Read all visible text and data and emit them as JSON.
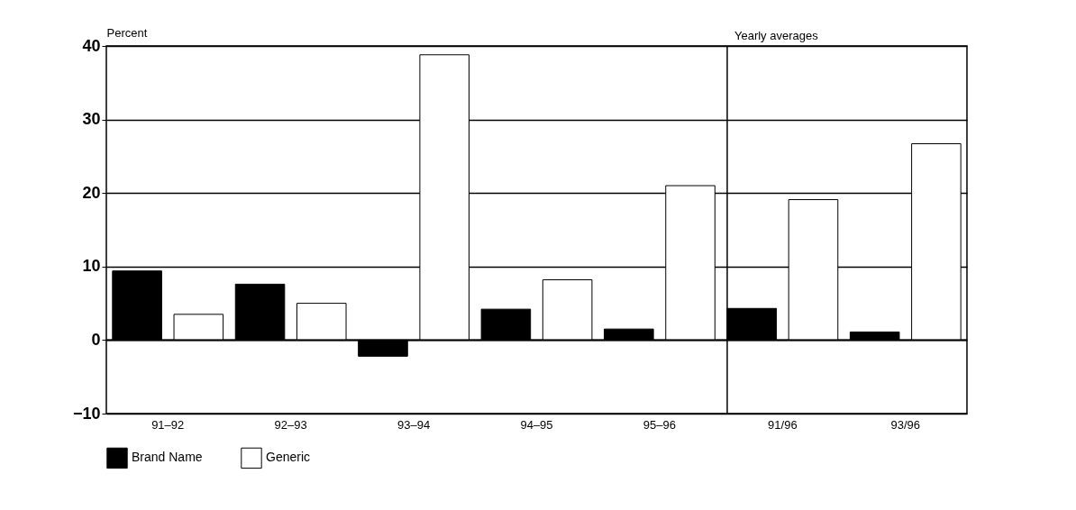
{
  "chart_data": {
    "type": "bar",
    "ylabel": "Percent",
    "categories": [
      "91–92",
      "92–93",
      "93–94",
      "94–95",
      "95–96",
      "91/96",
      "93/96"
    ],
    "series": [
      {
        "name": "Brand Name",
        "color": "#000000",
        "values": [
          9.4,
          7.6,
          -2.2,
          4.2,
          1.5,
          4.3,
          1.1
        ]
      },
      {
        "name": "Generic",
        "color": "#ffffff",
        "values": [
          3.5,
          5.0,
          38.8,
          8.2,
          21.0,
          19.1,
          26.7
        ]
      }
    ],
    "ylim": [
      -10,
      40
    ],
    "yticks": [
      -10,
      0,
      10,
      20,
      30,
      40
    ],
    "grid": "y",
    "legend": "bottom",
    "ref_lines": [
      {
        "axis": "x",
        "value": "91/96",
        "label": "Yearly averages"
      }
    ]
  }
}
